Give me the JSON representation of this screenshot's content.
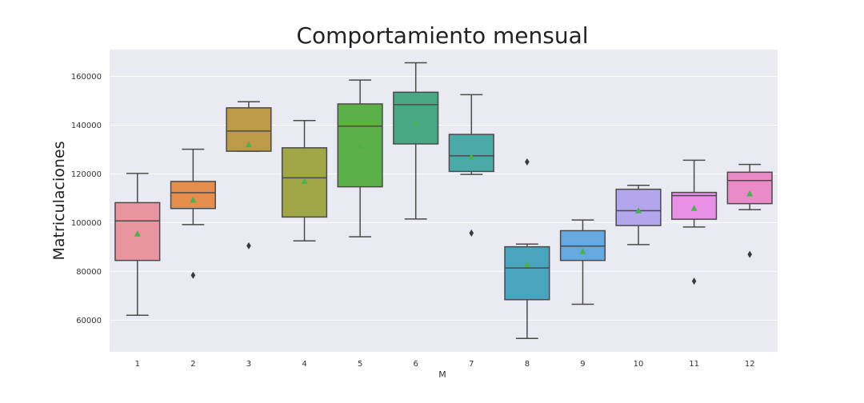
{
  "chart_data": {
    "type": "box",
    "title": "Comportamiento mensual",
    "xlabel": "M",
    "ylabel": "Matriculaciones",
    "ylim": [
      47000,
      171000
    ],
    "yticks": [
      60000,
      80000,
      100000,
      120000,
      140000,
      160000
    ],
    "ytick_labels": [
      "60000",
      "80000",
      "100000",
      "120000",
      "140000",
      "160000"
    ],
    "grid": true,
    "categories": [
      "1",
      "2",
      "3",
      "4",
      "5",
      "6",
      "7",
      "8",
      "9",
      "10",
      "11",
      "12"
    ],
    "boxes": [
      {
        "category": "1",
        "color": "#e9959f",
        "whislo": 62000,
        "q1": 84500,
        "med": 100700,
        "q3": 108200,
        "whishi": 120200,
        "mean": 95300,
        "fliers": []
      },
      {
        "category": "2",
        "color": "#e48d4c",
        "whislo": 99200,
        "q1": 105800,
        "med": 112300,
        "q3": 116900,
        "whishi": 130100,
        "mean": 109200,
        "fliers": [
          78400
        ]
      },
      {
        "category": "3",
        "color": "#bc9a47",
        "whislo": 129300,
        "q1": 129300,
        "med": 137600,
        "q3": 147100,
        "whishi": 149600,
        "mean": 131900,
        "fliers": [
          90500
        ]
      },
      {
        "category": "4",
        "color": "#a1a747",
        "whislo": 92500,
        "q1": 102300,
        "med": 118400,
        "q3": 130700,
        "whishi": 141900,
        "mean": 116900,
        "fliers": []
      },
      {
        "category": "5",
        "color": "#5cb048",
        "whislo": 94200,
        "q1": 114700,
        "med": 139600,
        "q3": 148700,
        "whishi": 158500,
        "mean": 131500,
        "fliers": []
      },
      {
        "category": "6",
        "color": "#48a785",
        "whislo": 101500,
        "q1": 132300,
        "med": 148400,
        "q3": 153500,
        "whishi": 165600,
        "mean": 140800,
        "fliers": []
      },
      {
        "category": "7",
        "color": "#4aaaa8",
        "whislo": 119800,
        "q1": 121000,
        "med": 127400,
        "q3": 136200,
        "whishi": 152500,
        "mean": 126900,
        "fliers": [
          95700
        ]
      },
      {
        "category": "8",
        "color": "#4aa4bd",
        "whislo": 52500,
        "q1": 68400,
        "med": 81400,
        "q3": 90100,
        "whishi": 91200,
        "mean": 82700,
        "fliers": [
          124900
        ]
      },
      {
        "category": "9",
        "color": "#66a9e0",
        "whislo": 66500,
        "q1": 84500,
        "med": 90400,
        "q3": 96700,
        "whishi": 101100,
        "mean": 88100,
        "fliers": []
      },
      {
        "category": "10",
        "color": "#b4a6ec",
        "whislo": 91000,
        "q1": 98800,
        "med": 104900,
        "q3": 113700,
        "whishi": 115300,
        "mean": 104800,
        "fliers": []
      },
      {
        "category": "11",
        "color": "#e790e6",
        "whislo": 98200,
        "q1": 101400,
        "med": 111100,
        "q3": 112400,
        "whishi": 125600,
        "mean": 105800,
        "fliers": [
          76000
        ]
      },
      {
        "category": "12",
        "color": "#ea8bc8",
        "whislo": 105300,
        "q1": 107800,
        "med": 117300,
        "q3": 120700,
        "whishi": 123900,
        "mean": 111800,
        "fliers": [
          87000
        ]
      }
    ],
    "mean_marker_color": "#4caf50",
    "plot_background": "#eaeaf2",
    "line_color": "#4a4a4a"
  }
}
